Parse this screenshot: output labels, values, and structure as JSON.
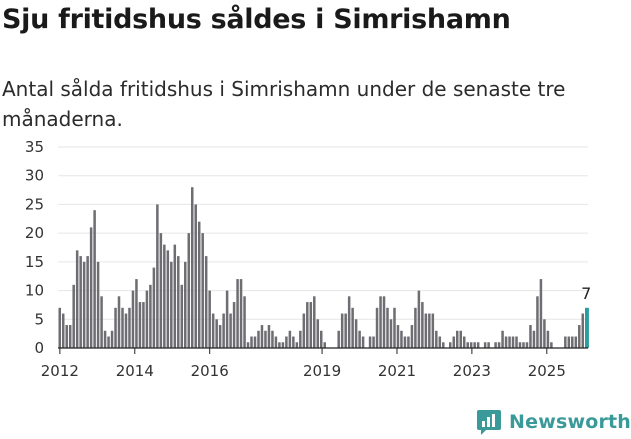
{
  "header": {
    "title": "Sju fritidshus såldes i Simrishamn",
    "subtitle": "Antal sålda fritidshus i Simrishamn under de senaste tre månaderna."
  },
  "brand": {
    "name": "Newsworthy",
    "icon": "newsworthy-logo-icon",
    "color": "#3a9a9a"
  },
  "colors": {
    "bar": "#6e6d72",
    "highlight": "#2a9d9c",
    "axis": "#222222",
    "grid": "#e6e6e6"
  },
  "chart_data": {
    "type": "bar",
    "title": "Sju fritidshus såldes i Simrishamn",
    "xlabel": "",
    "ylabel": "",
    "ylim": [
      0,
      35
    ],
    "yticks": [
      0,
      5,
      10,
      15,
      20,
      25,
      30,
      35
    ],
    "xticks": [
      {
        "label": "2012",
        "year": 2012
      },
      {
        "label": "2014",
        "year": 2014
      },
      {
        "label": "2016",
        "year": 2016
      },
      {
        "label": "2019",
        "year": 2019
      },
      {
        "label": "2021",
        "year": 2021
      },
      {
        "label": "2023",
        "year": 2023
      },
      {
        "label": "2025",
        "year": 2025
      }
    ],
    "start_year": 2011.95,
    "end_year": 2026.1,
    "series": [
      {
        "name": "Antal sålda fritidshus",
        "values": [
          7,
          6,
          4,
          4,
          11,
          17,
          16,
          15,
          16,
          21,
          24,
          15,
          9,
          3,
          2,
          3,
          7,
          9,
          7,
          6,
          7,
          10,
          12,
          8,
          8,
          10,
          11,
          14,
          25,
          20,
          18,
          17,
          15,
          18,
          16,
          11,
          15,
          20,
          28,
          25,
          22,
          20,
          16,
          10,
          6,
          5,
          4,
          6,
          10,
          6,
          8,
          12,
          12,
          9,
          1,
          2,
          2,
          3,
          4,
          3,
          4,
          3,
          2,
          1,
          1,
          2,
          3,
          2,
          1,
          3,
          6,
          8,
          8,
          9,
          5,
          3,
          1,
          0,
          0,
          0,
          3,
          6,
          6,
          9,
          7,
          5,
          3,
          2,
          0,
          2,
          2,
          7,
          9,
          9,
          7,
          5,
          7,
          4,
          3,
          2,
          2,
          4,
          7,
          10,
          8,
          6,
          6,
          6,
          3,
          2,
          1,
          0,
          1,
          2,
          3,
          3,
          2,
          1,
          1,
          1,
          1,
          0,
          1,
          1,
          0,
          1,
          1,
          3,
          2,
          2,
          2,
          2,
          1,
          1,
          1,
          4,
          3,
          9,
          12,
          5,
          3,
          1,
          0,
          0,
          0,
          2,
          2,
          2,
          2,
          4,
          6,
          7
        ]
      }
    ],
    "annotations": [
      {
        "label": "7",
        "index": 151
      }
    ]
  }
}
